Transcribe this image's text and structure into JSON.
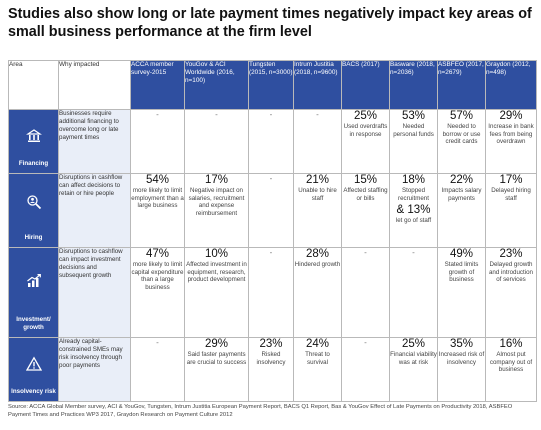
{
  "title": "Studies also show long or late payment times negatively impact key areas of small business performance at the firm level",
  "header": {
    "area_label": "Area",
    "why_label": "Why impacted",
    "sources": [
      "ACCA member survey-2015",
      "YouGov & ACI Worldwide (2016, n=100)",
      "Tungsten (2015, n=3000)",
      "Intrum Justitia (2018, n=9600)",
      "BACS (2017)",
      "Basware (2018, n=2036)",
      "ASBFEO (2017, n=2679)",
      "Graydon (2012, n=498)"
    ]
  },
  "rows": [
    {
      "area": "Financing",
      "icon": "bank-icon",
      "why": "Businesses require additional financing to overcome long or late payment times",
      "cells": [
        {
          "value": "-",
          "desc": ""
        },
        {
          "value": "-",
          "desc": ""
        },
        {
          "value": "-",
          "desc": ""
        },
        {
          "value": "-",
          "desc": ""
        },
        {
          "value": "25%",
          "desc": "Used overdrafts in response"
        },
        {
          "value": "53%",
          "desc": "Needed personal funds"
        },
        {
          "value": "57%",
          "desc": "Needed to borrow or use credit cards"
        },
        {
          "value": "29%",
          "desc": "Increase in bank fees from being overdrawn"
        }
      ]
    },
    {
      "area": "Hiring",
      "icon": "magnifier-person-icon",
      "why": "Disruptions in cashflow can affect decisions to retain or hire people",
      "cells": [
        {
          "value": "54%",
          "desc": "more likely to limit employment than a large business"
        },
        {
          "value": "17%",
          "desc": "Negative impact on salaries, recruitment and expense reimbursement"
        },
        {
          "value": "-",
          "desc": ""
        },
        {
          "value": "21%",
          "desc": "Unable to hire staff"
        },
        {
          "value": "15%",
          "desc": "Affected staffing or bills"
        },
        {
          "value": "18%",
          "desc": "Stopped recruitment",
          "value2": "& 13%",
          "desc2": "let go of staff"
        },
        {
          "value": "22%",
          "desc": "Impacts salary payments"
        },
        {
          "value": "17%",
          "desc": "Delayed hiring staff"
        }
      ]
    },
    {
      "area": "Investment/ growth",
      "icon": "growth-chart-icon",
      "why": "Disruptions to cashflow can impact investment decisions and subsequent growth",
      "cells": [
        {
          "value": "47%",
          "desc": "more likely to limit capital expenditure than a large business"
        },
        {
          "value": "10%",
          "desc": "Affected investment in equipment, research, product development"
        },
        {
          "value": "-",
          "desc": ""
        },
        {
          "value": "28%",
          "desc": "Hindered growth"
        },
        {
          "value": "-",
          "desc": ""
        },
        {
          "value": "-",
          "desc": ""
        },
        {
          "value": "49%",
          "desc": "Stated limits growth of business"
        },
        {
          "value": "23%",
          "desc": "Delayed growth and introduction of services"
        }
      ]
    },
    {
      "area": "Insolvency risk",
      "icon": "warning-icon",
      "why": "Already capital-constrained SMEs may risk insolvency through poor payments",
      "cells": [
        {
          "value": "-",
          "desc": ""
        },
        {
          "value": "29%",
          "desc": "Said faster payments are crucial to success"
        },
        {
          "value": "23%",
          "desc": "Risked insolvency"
        },
        {
          "value": "24%",
          "desc": "Threat to survival"
        },
        {
          "value": "-",
          "desc": ""
        },
        {
          "value": "25%",
          "desc": "Financial viability was at risk"
        },
        {
          "value": "35%",
          "desc": "Increased risk of insolvency"
        },
        {
          "value": "16%",
          "desc": "Almost put company out of business"
        }
      ]
    }
  ],
  "source": "Source: ACCA Global Member survey, ACI & YouGov, Tungsten, Intrum Justitia European Payment Report, BACS Q1 Report, Bas & YouGov Effect of Late Payments on Productivity 2018, ASBFEO Payment Times and Practices WP3 2017, Graydon Research on Payment Culture 2012",
  "colors": {
    "header_bg": "#2f4fa0",
    "why_bg": "#e9eef8"
  }
}
